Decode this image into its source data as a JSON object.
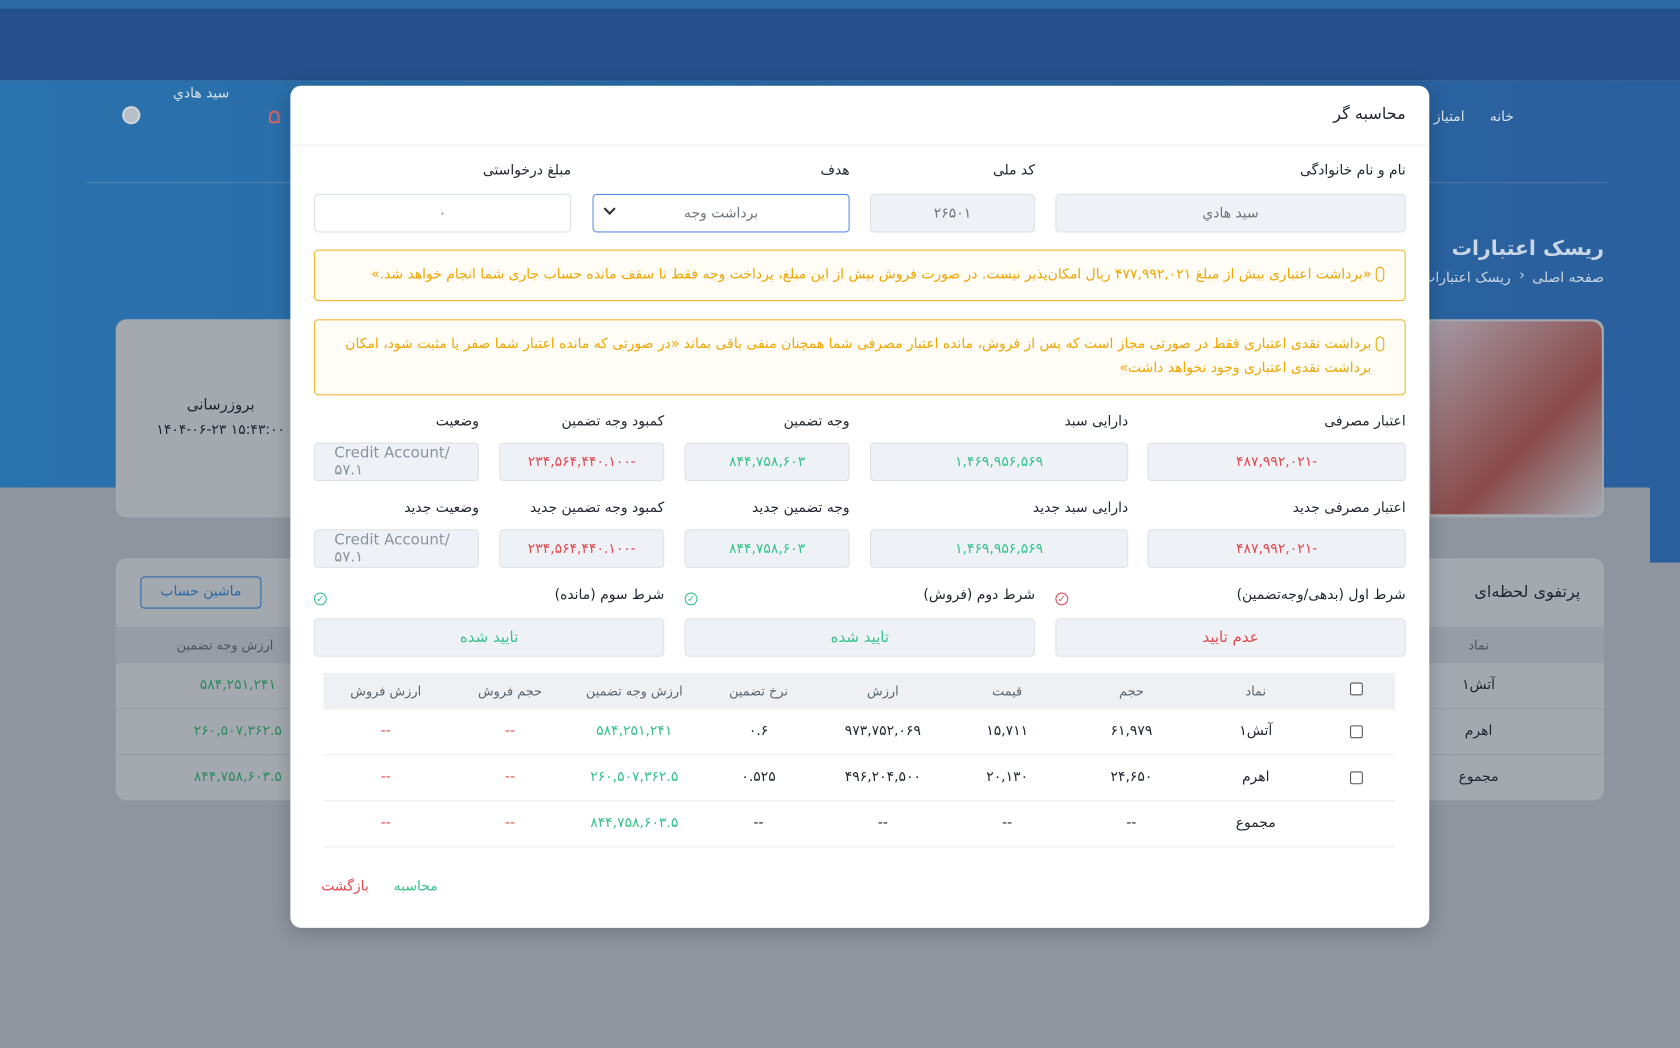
{
  "background": {
    "nav": [
      "خانه",
      "امتیاز"
    ],
    "user_name": "سید هادي",
    "page_title": "ریسک اعتبارات",
    "breadcrumb": [
      "صفحه اصلی",
      "ریسک اعتبارات"
    ],
    "update_label": "بروزرسانی",
    "update_time": "۱۴۰۴-۰۶-۲۳ ۱۵:۴۳:۰۰",
    "portfolio_title": "پرتفوی لحظه‌ای",
    "calculator_button": "ماشین حساب",
    "portfolio_table": {
      "headers": [
        "نماد",
        "ارزش وجه تضمین"
      ],
      "rows": [
        [
          "آتش۱",
          "۵۸۴,۲۵۱,۲۴۱"
        ],
        [
          "اهرم",
          "۲۶۰,۵۰۷,۳۶۲.۵"
        ],
        [
          "مجموع",
          "۸۴۴,۷۵۸,۶۰۳.۵"
        ]
      ]
    }
  },
  "modal": {
    "title": "محاسبه گر",
    "inputs": [
      {
        "label": "نام و نام خانوادگی",
        "value": "سید هادي"
      },
      {
        "label": "کد ملی",
        "value": "۲۶۵۰۱"
      },
      {
        "label": "هدف",
        "value": "برداشت وجه"
      },
      {
        "label": "مبلغ درخواستی",
        "value": "۰"
      }
    ],
    "alerts": [
      "«برداشت اعتباری بیش از مبلغ ۴۷۷,۹۹۲,۰۲۱ ریال امکان‌پذیر نیست. در صورت فروش بیش از این مبلغ، پرداخت وجه فقط تا سقف مانده حساب جاری شما انجام خواهد شد.»",
      "برداشت نقدی اعتباری فقط در صورتی مجاز است که پس از فروش، مانده اعتبار مصرفی شما همچنان منفی باقی بماند «در صورتی که مانده اعتبار شما صفر یا مثبت شود، امکان برداشت نقدی اعتباری وجود نخواهد داشت»"
    ],
    "current": [
      {
        "label": "اعتبار مصرفی",
        "value": "-۴۸۷,۹۹۲,۰۲۱",
        "color": "#e0484f"
      },
      {
        "label": "دارایی سبد",
        "value": "۱,۴۶۹,۹۵۶,۵۶۹",
        "color": "#36c18c"
      },
      {
        "label": "وجه تضمین",
        "value": "۸۴۴,۷۵۸,۶۰۳",
        "color": "#36c18c"
      },
      {
        "label": "کمبود وجه تضمین",
        "value": "-۲۳۴,۵۶۴,۴۴۰.۱۰۰",
        "color": "#e0484f"
      },
      {
        "label": "وضعیت",
        "value": "Credit Account/۵۷.۱",
        "color": "#8a94a0"
      }
    ],
    "new": [
      {
        "label": "اعتبار مصرفی جدید",
        "value": "-۴۸۷,۹۹۲,۰۲۱",
        "color": "#e0484f"
      },
      {
        "label": "دارایی سبد جدید",
        "value": "۱,۴۶۹,۹۵۶,۵۶۹",
        "color": "#36c18c"
      },
      {
        "label": "وجه تضمین جدید",
        "value": "۸۴۴,۷۵۸,۶۰۳",
        "color": "#36c18c"
      },
      {
        "label": "کمبود وجه تضمین جدید",
        "value": "-۲۳۴,۵۶۴,۴۴۰.۱۰۰",
        "color": "#e0484f"
      },
      {
        "label": "وضعیت جدید",
        "value": "Credit Account/۵۷.۱",
        "color": "#8a94a0"
      }
    ],
    "conditions": [
      {
        "label": "شرط اول (بدهی/وجه‌تضمین)",
        "status": "عدم تایید",
        "ok": false
      },
      {
        "label": "شرط دوم (فروش)",
        "status": "تایید شده",
        "ok": true
      },
      {
        "label": "شرط سوم (مانده)",
        "status": "تایید شده",
        "ok": true
      }
    ],
    "table": {
      "headers": [
        "نماد",
        "حجم",
        "قیمت",
        "ارزش",
        "نرخ تضمین",
        "ارزش وجه تضمین",
        "حجم فروش",
        "ارزش فروش"
      ],
      "rows": [
        [
          "آتش۱",
          "۶۱,۹۷۹",
          "۱۵,۷۱۱",
          "۹۷۳,۷۵۲,۰۶۹",
          "۰.۶",
          "۵۸۴,۲۵۱,۲۴۱",
          "--",
          "--"
        ],
        [
          "اهرم",
          "۲۴,۶۵۰",
          "۲۰,۱۳۰",
          "۴۹۶,۲۰۴,۵۰۰",
          "۰.۵۲۵",
          "۲۶۰,۵۰۷,۳۶۲.۵",
          "--",
          "--"
        ],
        [
          "مجموع",
          "--",
          "--",
          "--",
          "--",
          "۸۴۴,۷۵۸,۶۰۳.۵",
          "--",
          "--"
        ]
      ]
    },
    "actions": {
      "calculate": "محاسبه",
      "back": "بازگشت"
    }
  }
}
